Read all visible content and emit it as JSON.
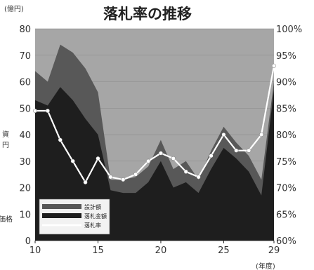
{
  "chart_data": {
    "type": "area",
    "title": "落札率の推移",
    "left_unit": "(億円)",
    "right_unit": "",
    "x_unit": "(年度)",
    "x": [
      10,
      11,
      12,
      13,
      14,
      15,
      16,
      17,
      18,
      19,
      20,
      21,
      22,
      23,
      24,
      25,
      26,
      27,
      28,
      29
    ],
    "x_ticks": [
      10,
      15,
      20,
      25,
      29
    ],
    "y_left_ticks": [
      0,
      10,
      20,
      30,
      40,
      50,
      60,
      70,
      80
    ],
    "y_right_ticks": [
      "60%",
      "65%",
      "70%",
      "75%",
      "80%",
      "85%",
      "90%",
      "95%",
      "100%"
    ],
    "ylim_left": [
      0,
      80
    ],
    "ylim_right": [
      60,
      100
    ],
    "series": [
      {
        "name": "設計額",
        "axis": "left",
        "color": "#585858",
        "values": [
          64,
          60,
          74,
          71,
          65,
          56,
          23,
          23,
          24,
          28,
          38,
          27,
          30,
          23,
          34,
          43,
          37,
          32,
          23,
          60
        ]
      },
      {
        "name": "落札金額",
        "axis": "left",
        "color": "#1e1e1e",
        "values": [
          53,
          51,
          58,
          53,
          46,
          40,
          19,
          18,
          18,
          22,
          30,
          20,
          22,
          18,
          27,
          35,
          31,
          26,
          17,
          57
        ]
      },
      {
        "name": "落札率",
        "axis": "right",
        "color": "#ffffff",
        "values": [
          84.5,
          84.5,
          79,
          75,
          71,
          75.5,
          72,
          71.5,
          72.5,
          75,
          76.5,
          75.5,
          73,
          72,
          76,
          80,
          77,
          77,
          80,
          93
        ]
      }
    ],
    "background_color": "#a6a6a6",
    "grid": true,
    "legend_position": "bottom-left",
    "edge_labels": [
      "資",
      "円",
      "価格"
    ]
  }
}
